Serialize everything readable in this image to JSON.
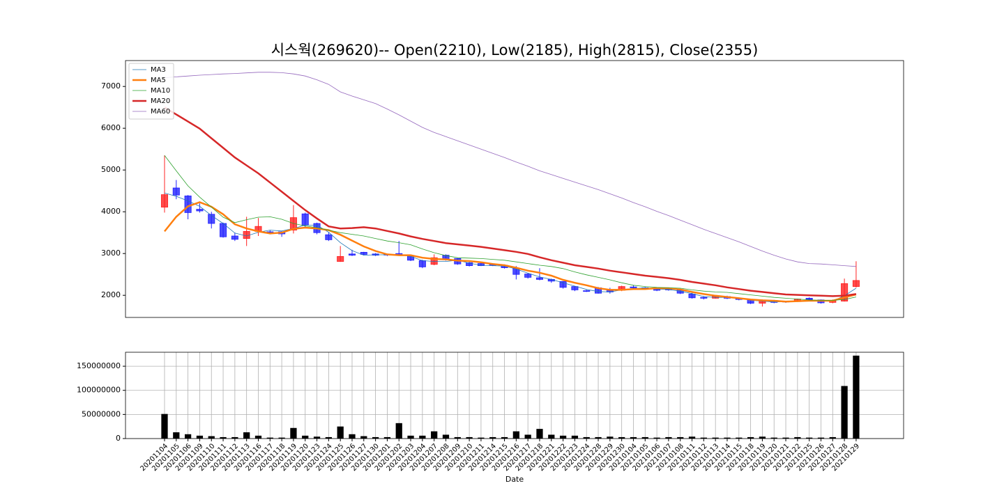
{
  "chart_data": {
    "type": "candlestick",
    "title": "시스웍(269620)-- Open(2210), Low(2185), High(2815), Close(2355)",
    "xlabel": "Date",
    "categories": [
      "20201104",
      "20201105",
      "20201106",
      "20201109",
      "20201110",
      "20201111",
      "20201112",
      "20201113",
      "20201116",
      "20201117",
      "20201118",
      "20201119",
      "20201120",
      "20201123",
      "20201124",
      "20201125",
      "20201126",
      "20201127",
      "20201130",
      "20201201",
      "20201202",
      "20201203",
      "20201204",
      "20201207",
      "20201208",
      "20201209",
      "20201210",
      "20201211",
      "20201214",
      "20201215",
      "20201216",
      "20201217",
      "20201218",
      "20201221",
      "20201222",
      "20201223",
      "20201224",
      "20201228",
      "20201229",
      "20201230",
      "20210104",
      "20210105",
      "20210106",
      "20210107",
      "20210108",
      "20210111",
      "20210112",
      "20210113",
      "20210114",
      "20210115",
      "20210118",
      "20210119",
      "20210120",
      "20210121",
      "20210122",
      "20210125",
      "20210126",
      "20210127",
      "20210128",
      "20210129"
    ],
    "open": [
      4110,
      4570,
      4380,
      4060,
      3940,
      3720,
      3420,
      3360,
      3530,
      3520,
      3520,
      3560,
      3950,
      3720,
      3450,
      2810,
      2990,
      3030,
      2990,
      2980,
      3000,
      2940,
      2830,
      2740,
      2960,
      2880,
      2780,
      2760,
      2750,
      2720,
      2650,
      2510,
      2420,
      2380,
      2330,
      2210,
      2110,
      2180,
      2110,
      2120,
      2200,
      2180,
      2150,
      2150,
      2140,
      2030,
      1950,
      1930,
      1970,
      1920,
      1890,
      1810,
      1880,
      1860,
      1850,
      1930,
      1890,
      1830,
      1860,
      2210
    ],
    "high": [
      5350,
      4760,
      4400,
      4200,
      4000,
      3740,
      3500,
      3880,
      3850,
      3560,
      3530,
      4160,
      3980,
      3740,
      3500,
      3180,
      3090,
      3040,
      3010,
      2990,
      3300,
      2960,
      2850,
      2980,
      2980,
      2890,
      2800,
      2780,
      2770,
      2740,
      2700,
      2530,
      2650,
      2400,
      2340,
      2220,
      2130,
      2200,
      2180,
      2230,
      2240,
      2200,
      2170,
      2180,
      2160,
      2060,
      1980,
      2000,
      1990,
      1940,
      1900,
      1900,
      1890,
      1870,
      1920,
      1950,
      1900,
      1900,
      2400,
      2815
    ],
    "low": [
      3980,
      4300,
      3820,
      3980,
      3600,
      3380,
      3300,
      3180,
      3420,
      3460,
      3400,
      3480,
      3620,
      3460,
      3300,
      2800,
      2940,
      2960,
      2940,
      2940,
      2950,
      2820,
      2650,
      2720,
      2830,
      2730,
      2690,
      2700,
      2700,
      2640,
      2380,
      2400,
      2360,
      2300,
      2160,
      2100,
      2080,
      2040,
      2040,
      2100,
      2160,
      2140,
      2100,
      2110,
      2030,
      1920,
      1900,
      1920,
      1910,
      1880,
      1790,
      1730,
      1810,
      1820,
      1840,
      1880,
      1800,
      1810,
      1850,
      2185
    ],
    "close": [
      4410,
      4400,
      3980,
      4020,
      3720,
      3400,
      3340,
      3530,
      3650,
      3490,
      3470,
      3860,
      3680,
      3500,
      3330,
      2930,
      2960,
      2980,
      2960,
      2970,
      2970,
      2840,
      2680,
      2900,
      2850,
      2750,
      2710,
      2710,
      2720,
      2660,
      2500,
      2430,
      2380,
      2340,
      2190,
      2130,
      2100,
      2050,
      2080,
      2210,
      2180,
      2160,
      2120,
      2130,
      2050,
      1940,
      1930,
      1980,
      1930,
      1900,
      1810,
      1880,
      1830,
      1840,
      1910,
      1900,
      1820,
      1870,
      2280,
      2355
    ],
    "up_color": "#ff2020",
    "down_color": "#2020ff",
    "series": [
      {
        "name": "MA3",
        "color": "#1f77b4",
        "width": 0.8,
        "values": [
          4450,
          4370,
          4260,
          4130,
          3910,
          3720,
          3490,
          3420,
          3510,
          3560,
          3540,
          3600,
          3680,
          3680,
          3510,
          3260,
          3070,
          2960,
          2970,
          2970,
          2970,
          2930,
          2830,
          2810,
          2810,
          2840,
          2770,
          2720,
          2710,
          2700,
          2630,
          2530,
          2440,
          2380,
          2300,
          2220,
          2140,
          2090,
          2080,
          2130,
          2160,
          2180,
          2150,
          2140,
          2100,
          2040,
          1970,
          1950,
          1950,
          1940,
          1880,
          1860,
          1840,
          1850,
          1860,
          1880,
          1880,
          1860,
          1990,
          2170
        ]
      },
      {
        "name": "MA5",
        "color": "#ff7f0e",
        "width": 2.5,
        "values": [
          3530,
          3880,
          4130,
          4230,
          4120,
          3940,
          3700,
          3600,
          3530,
          3480,
          3500,
          3590,
          3620,
          3600,
          3560,
          3450,
          3310,
          3170,
          3060,
          2980,
          2960,
          2960,
          2900,
          2870,
          2860,
          2830,
          2820,
          2790,
          2750,
          2720,
          2660,
          2590,
          2540,
          2470,
          2370,
          2300,
          2240,
          2170,
          2130,
          2130,
          2150,
          2150,
          2170,
          2170,
          2140,
          2080,
          2030,
          1990,
          1960,
          1930,
          1900,
          1880,
          1870,
          1850,
          1860,
          1870,
          1870,
          1870,
          1950,
          2020
        ]
      },
      {
        "name": "MA10",
        "color": "#2ca02c",
        "width": 0.8,
        "values": [
          5350,
          4980,
          4620,
          4350,
          4110,
          3870,
          3740,
          3810,
          3870,
          3880,
          3820,
          3720,
          3660,
          3620,
          3560,
          3500,
          3460,
          3420,
          3360,
          3300,
          3260,
          3210,
          3110,
          3020,
          2950,
          2900,
          2890,
          2880,
          2860,
          2840,
          2800,
          2760,
          2720,
          2690,
          2640,
          2560,
          2490,
          2430,
          2370,
          2300,
          2240,
          2210,
          2190,
          2180,
          2170,
          2130,
          2100,
          2080,
          2070,
          2040,
          2010,
          1980,
          1950,
          1930,
          1910,
          1890,
          1880,
          1880,
          1900,
          1960
        ]
      },
      {
        "name": "MA20",
        "color": "#d62728",
        "width": 2.5,
        "values": [
          6500,
          6330,
          6160,
          5990,
          5760,
          5530,
          5300,
          5110,
          4920,
          4700,
          4480,
          4260,
          4040,
          3840,
          3650,
          3600,
          3610,
          3630,
          3600,
          3540,
          3480,
          3410,
          3350,
          3300,
          3250,
          3220,
          3190,
          3160,
          3120,
          3080,
          3040,
          2990,
          2910,
          2840,
          2780,
          2720,
          2680,
          2640,
          2590,
          2550,
          2510,
          2470,
          2440,
          2410,
          2370,
          2320,
          2280,
          2240,
          2190,
          2150,
          2110,
          2080,
          2050,
          2020,
          2010,
          2000,
          1990,
          1980,
          1990,
          2030
        ]
      },
      {
        "name": "MA60",
        "color": "#9467bd",
        "width": 0.8,
        "values": [
          7210,
          7230,
          7250,
          7270,
          7285,
          7300,
          7310,
          7325,
          7340,
          7340,
          7330,
          7300,
          7250,
          7160,
          7050,
          6870,
          6770,
          6680,
          6590,
          6460,
          6320,
          6170,
          6020,
          5900,
          5800,
          5700,
          5600,
          5500,
          5400,
          5300,
          5190,
          5090,
          4980,
          4890,
          4800,
          4710,
          4620,
          4530,
          4430,
          4330,
          4220,
          4120,
          4010,
          3910,
          3800,
          3690,
          3580,
          3480,
          3380,
          3280,
          3170,
          3060,
          2960,
          2870,
          2800,
          2760,
          2750,
          2730,
          2710,
          2690
        ]
      }
    ],
    "ylim": [
      1470,
      7620
    ],
    "yticks": [
      2000,
      3000,
      4000,
      5000,
      6000,
      7000
    ],
    "legend": "upper left",
    "volume": [
      51000000,
      13000000,
      9000000,
      6000000,
      5000000,
      3000000,
      3000000,
      13000000,
      6000000,
      2000000,
      2000000,
      22000000,
      6000000,
      4000000,
      3000000,
      25000000,
      9000000,
      5000000,
      3000000,
      3000000,
      32000000,
      6000000,
      6000000,
      15000000,
      8000000,
      3000000,
      3000000,
      2000000,
      3000000,
      3000000,
      15000000,
      8000000,
      20000000,
      8000000,
      6000000,
      6000000,
      3000000,
      3000000,
      4000000,
      3000000,
      3000000,
      3000000,
      2000000,
      3000000,
      3000000,
      4000000,
      2000000,
      2000000,
      2000000,
      2000000,
      3000000,
      4000000,
      2000000,
      2000000,
      3000000,
      2000000,
      2000000,
      3000000,
      109000000,
      172000000
    ],
    "volume_color": "#000000",
    "volume_ylim": [
      0,
      179000000
    ],
    "volume_yticks": [
      0,
      50000000,
      100000000,
      150000000
    ],
    "volume_grid": true
  }
}
